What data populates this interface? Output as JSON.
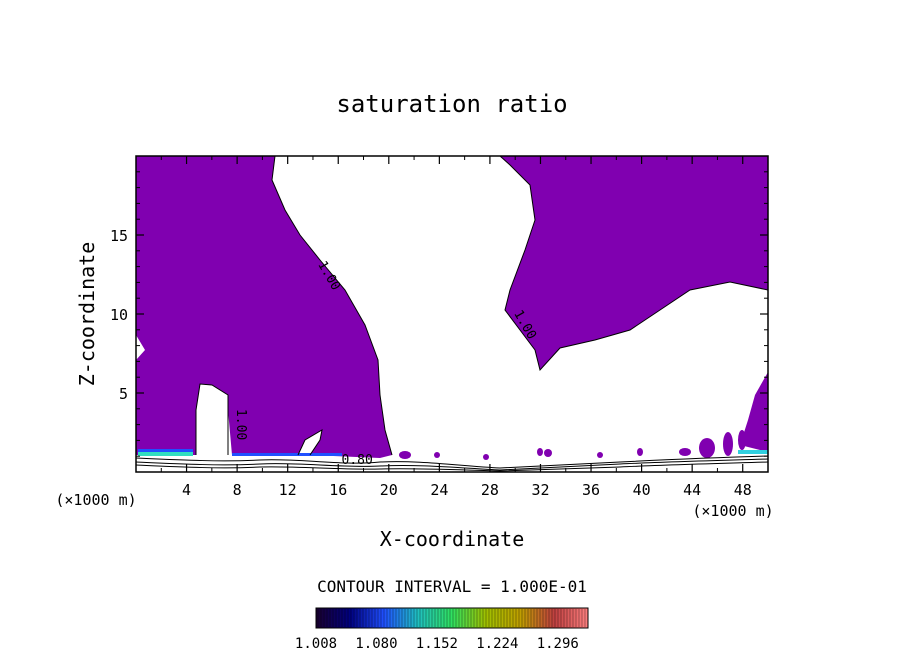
{
  "chart_data": {
    "type": "contour",
    "title": "saturation ratio",
    "xlabel": "X-coordinate",
    "ylabel": "Z-coordinate",
    "x_unit": "(×1000 m)",
    "z_unit": "(×1000 m)",
    "xlim": [
      0,
      50
    ],
    "ylim": [
      0,
      20
    ],
    "x_ticks": [
      4,
      8,
      12,
      16,
      20,
      24,
      28,
      32,
      36,
      40,
      44,
      48
    ],
    "y_ticks": [
      5,
      10,
      15
    ],
    "contour_labels": [
      {
        "text": "1.00",
        "x": 15,
        "z": 12.3,
        "rotate": 60
      },
      {
        "text": "1.00",
        "x": 30.5,
        "z": 9.2,
        "rotate": 60
      },
      {
        "text": "1.00",
        "x": 8,
        "z": 3.0,
        "rotate": 90
      },
      {
        "text": "0.80",
        "x": 17.5,
        "z": 0.5,
        "rotate": 0
      }
    ],
    "contour_interval_text": "CONTOUR INTERVAL = 1.000E-01",
    "colorbar": {
      "ticks": [
        "1.008",
        "1.080",
        "1.152",
        "1.224",
        "1.296"
      ],
      "range": [
        1.008,
        1.332
      ],
      "colors": [
        "#1a0030",
        "#000080",
        "#2050ff",
        "#20c0c0",
        "#30e060",
        "#a0c000",
        "#c0a000",
        "#c04040",
        "#ff8080"
      ]
    },
    "fill_color": "#8000b0"
  }
}
